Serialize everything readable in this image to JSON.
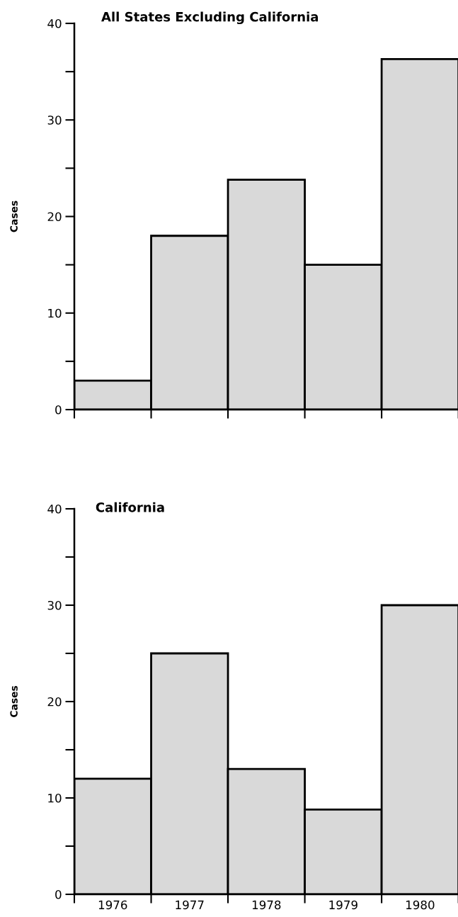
{
  "chart_data": [
    {
      "type": "bar",
      "title": "All States Excluding California",
      "ylabel": "Cases",
      "categories": [
        "1976",
        "1977",
        "1978",
        "1979",
        "1980"
      ],
      "values": [
        3,
        18,
        23.8,
        15,
        36.3
      ],
      "color": "#d9d9d9",
      "ylim": [
        0,
        40
      ],
      "yticks": [
        0,
        {
          "value": 5,
          "label": null
        },
        10,
        {
          "value": 15,
          "label": null
        },
        20,
        {
          "value": 25,
          "label": null
        },
        30,
        {
          "value": 35,
          "label": null
        },
        40
      ],
      "tick_labels": "y",
      "grid": false,
      "legend": false
    },
    {
      "type": "bar",
      "title": "California",
      "ylabel": "Cases",
      "categories": [
        "1976",
        "1977",
        "1978",
        "1979",
        "1980"
      ],
      "values": [
        12,
        25,
        13,
        8.8,
        30
      ],
      "color": "#d9d9d9",
      "ylim": [
        0,
        40
      ],
      "yticks": [
        0,
        {
          "value": 5,
          "label": null
        },
        10,
        {
          "value": 15,
          "label": null
        },
        20,
        {
          "value": 25,
          "label": null
        },
        30,
        {
          "value": 35,
          "label": null
        },
        40
      ],
      "grid": false,
      "legend": false
    }
  ]
}
